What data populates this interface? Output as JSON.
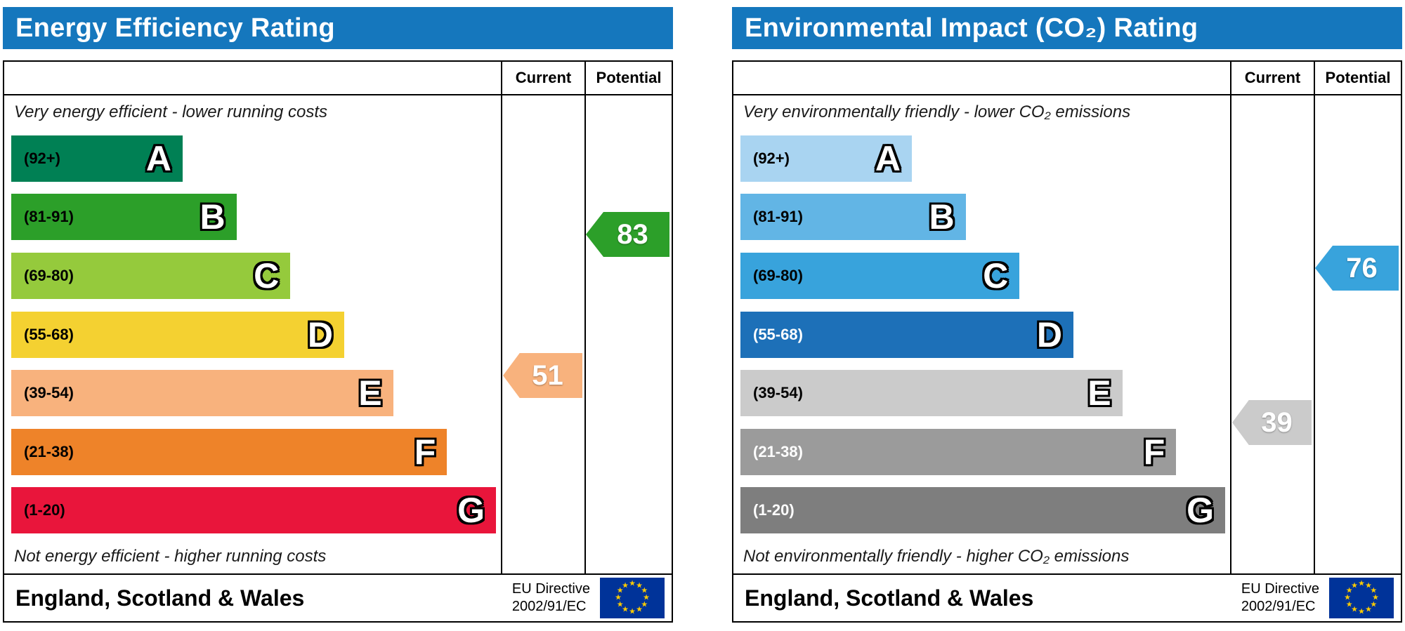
{
  "shared": {
    "current_label": "Current",
    "potential_label": "Potential",
    "footer_region": "England, Scotland & Wales",
    "eu_directive_line1": "EU Directive",
    "eu_directive_line2": "2002/91/EC",
    "header_bg": "#1577bd",
    "eu_flag": {
      "bg": "#003399",
      "star_color": "#ffcc00"
    }
  },
  "chart_data": [
    {
      "type": "bar",
      "title": "Energy Efficiency Rating",
      "top_caption": "Very energy efficient - lower running costs",
      "bottom_caption": "Not energy efficient - higher running costs",
      "columns": [
        "Current",
        "Potential"
      ],
      "bands": [
        {
          "letter": "A",
          "range_label": "(92+)",
          "min": 92,
          "max": 100,
          "color": "#008054",
          "label_color": "#000000",
          "width_pct": 35
        },
        {
          "letter": "B",
          "range_label": "(81-91)",
          "min": 81,
          "max": 91,
          "color": "#2c9f29",
          "label_color": "#000000",
          "width_pct": 46
        },
        {
          "letter": "C",
          "range_label": "(69-80)",
          "min": 69,
          "max": 80,
          "color": "#95ca3c",
          "label_color": "#000000",
          "width_pct": 57
        },
        {
          "letter": "D",
          "range_label": "(55-68)",
          "min": 55,
          "max": 68,
          "color": "#f4d131",
          "label_color": "#000000",
          "width_pct": 68
        },
        {
          "letter": "E",
          "range_label": "(39-54)",
          "min": 39,
          "max": 54,
          "color": "#f8b27d",
          "label_color": "#000000",
          "width_pct": 78
        },
        {
          "letter": "F",
          "range_label": "(21-38)",
          "min": 21,
          "max": 38,
          "color": "#ee8329",
          "label_color": "#000000",
          "width_pct": 89
        },
        {
          "letter": "G",
          "range_label": "(1-20)",
          "min": 1,
          "max": 20,
          "color": "#e9153b",
          "label_color": "#000000",
          "width_pct": 99
        }
      ],
      "current": {
        "value": 51,
        "band": "E"
      },
      "potential": {
        "value": 83,
        "band": "B"
      }
    },
    {
      "type": "bar",
      "title": "Environmental Impact (CO₂) Rating",
      "top_caption": "Very environmentally friendly - lower CO₂ emissions",
      "bottom_caption": "Not environmentally friendly - higher CO₂ emissions",
      "columns": [
        "Current",
        "Potential"
      ],
      "bands": [
        {
          "letter": "A",
          "range_label": "(92+)",
          "min": 92,
          "max": 100,
          "color": "#a9d4f1",
          "label_color": "#000000",
          "width_pct": 35
        },
        {
          "letter": "B",
          "range_label": "(81-91)",
          "min": 81,
          "max": 91,
          "color": "#62b5e5",
          "label_color": "#000000",
          "width_pct": 46
        },
        {
          "letter": "C",
          "range_label": "(69-80)",
          "min": 69,
          "max": 80,
          "color": "#38a3dc",
          "label_color": "#000000",
          "width_pct": 57
        },
        {
          "letter": "D",
          "range_label": "(55-68)",
          "min": 55,
          "max": 68,
          "color": "#1d70b8",
          "label_color": "#ffffff",
          "width_pct": 68
        },
        {
          "letter": "E",
          "range_label": "(39-54)",
          "min": 39,
          "max": 54,
          "color": "#cbcbcb",
          "label_color": "#000000",
          "width_pct": 78
        },
        {
          "letter": "F",
          "range_label": "(21-38)",
          "min": 21,
          "max": 38,
          "color": "#9b9b9b",
          "label_color": "#ffffff",
          "width_pct": 89
        },
        {
          "letter": "G",
          "range_label": "(1-20)",
          "min": 1,
          "max": 20,
          "color": "#7e7e7e",
          "label_color": "#ffffff",
          "width_pct": 99
        }
      ],
      "current": {
        "value": 39,
        "band": "E"
      },
      "potential": {
        "value": 76,
        "band": "C"
      }
    }
  ]
}
